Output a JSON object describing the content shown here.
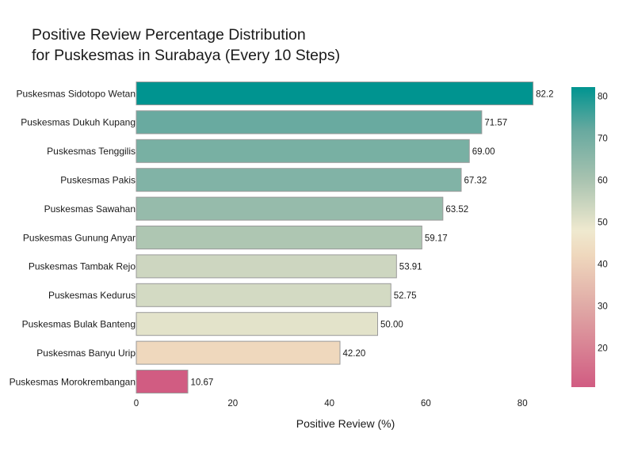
{
  "chart_data": {
    "type": "bar",
    "orientation": "horizontal",
    "title": "Positive Review Percentage Distribution\nfor Puskesmas in Surabaya (Every 10 Steps)",
    "xlabel": "Positive Review (%)",
    "ylabel": "",
    "xlim": [
      0,
      90
    ],
    "x_ticks": [
      0,
      20,
      40,
      60,
      80
    ],
    "grid": false,
    "colorscale": {
      "range": [
        10.67,
        82.2
      ],
      "ticks": [
        20,
        30,
        40,
        50,
        60,
        70,
        80
      ],
      "stops": [
        {
          "value": 10.67,
          "color": "#d15c82"
        },
        {
          "value": 30,
          "color": "#e0aaa6"
        },
        {
          "value": 42.2,
          "color": "#efd8bd"
        },
        {
          "value": 48,
          "color": "#efe9cf"
        },
        {
          "value": 60,
          "color": "#a9c3b0"
        },
        {
          "value": 72,
          "color": "#67a99f"
        },
        {
          "value": 82.2,
          "color": "#009490"
        }
      ]
    },
    "categories": [
      "Puskesmas Sidotopo Wetan",
      "Puskesmas Dukuh Kupang",
      "Puskesmas Tenggilis",
      "Puskesmas Pakis",
      "Puskesmas Sawahan",
      "Puskesmas Gunung Anyar",
      "Puskesmas Tambak Rejo",
      "Puskesmas Kedurus",
      "Puskesmas Bulak Banteng",
      "Puskesmas Banyu Urip",
      "Puskesmas Morokrembangan"
    ],
    "values": [
      82.2,
      71.57,
      69.0,
      67.32,
      63.52,
      59.17,
      53.91,
      52.75,
      50.0,
      42.2,
      10.67
    ],
    "value_labels": [
      "82.2",
      "71.57",
      "69.00",
      "67.32",
      "63.52",
      "59.17",
      "53.91",
      "52.75",
      "50.00",
      "42.20",
      "10.67"
    ]
  }
}
